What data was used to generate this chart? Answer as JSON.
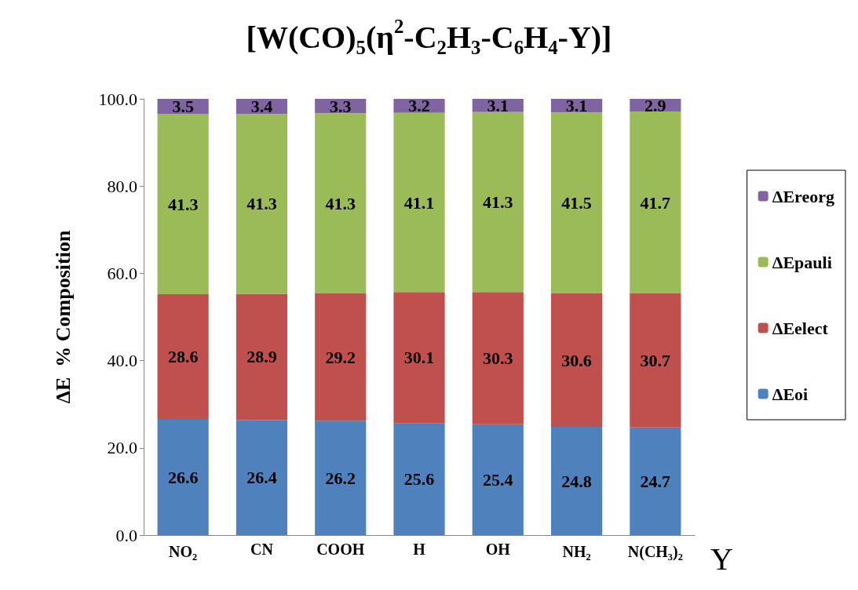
{
  "chart_data": {
    "type": "bar",
    "stacked": true,
    "title": "[W(CO)$_{5}$(η$^{2}$-C$_{2}$H$_{3}$-C$_{6}$H$_{4}$-Y)]",
    "xlabel": "Y",
    "ylabel": "ΔE  % Composition",
    "categories": [
      "NO$_{2}$",
      "CN",
      "COOH",
      "H",
      "OH",
      "NH$_{2}$",
      "N(CH$_{3}$)$_{2}$"
    ],
    "series": [
      {
        "name": "ΔEoi",
        "color": "#4f81bd",
        "values": [
          26.6,
          26.4,
          26.2,
          25.6,
          25.4,
          24.8,
          24.7
        ]
      },
      {
        "name": "ΔEelect",
        "color": "#c0504d",
        "values": [
          28.6,
          28.9,
          29.2,
          30.1,
          30.3,
          30.6,
          30.7
        ]
      },
      {
        "name": "ΔEpauli",
        "color": "#9bbb59",
        "values": [
          41.3,
          41.3,
          41.3,
          41.1,
          41.3,
          41.5,
          41.7
        ]
      },
      {
        "name": "ΔEreorg",
        "color": "#8064a2",
        "values": [
          3.5,
          3.4,
          3.3,
          3.2,
          3.1,
          3.1,
          2.9
        ]
      }
    ],
    "ylim": [
      0,
      100
    ],
    "yticks": [
      {
        "value": 0,
        "label": "0.0"
      },
      {
        "value": 20,
        "label": "20.0"
      },
      {
        "value": 40,
        "label": "40.0"
      },
      {
        "value": 60,
        "label": "60.0"
      },
      {
        "value": 80,
        "label": "80.0"
      },
      {
        "value": 100,
        "label": "100.0"
      }
    ],
    "data_labels": true,
    "legend": "right",
    "grid": false
  }
}
